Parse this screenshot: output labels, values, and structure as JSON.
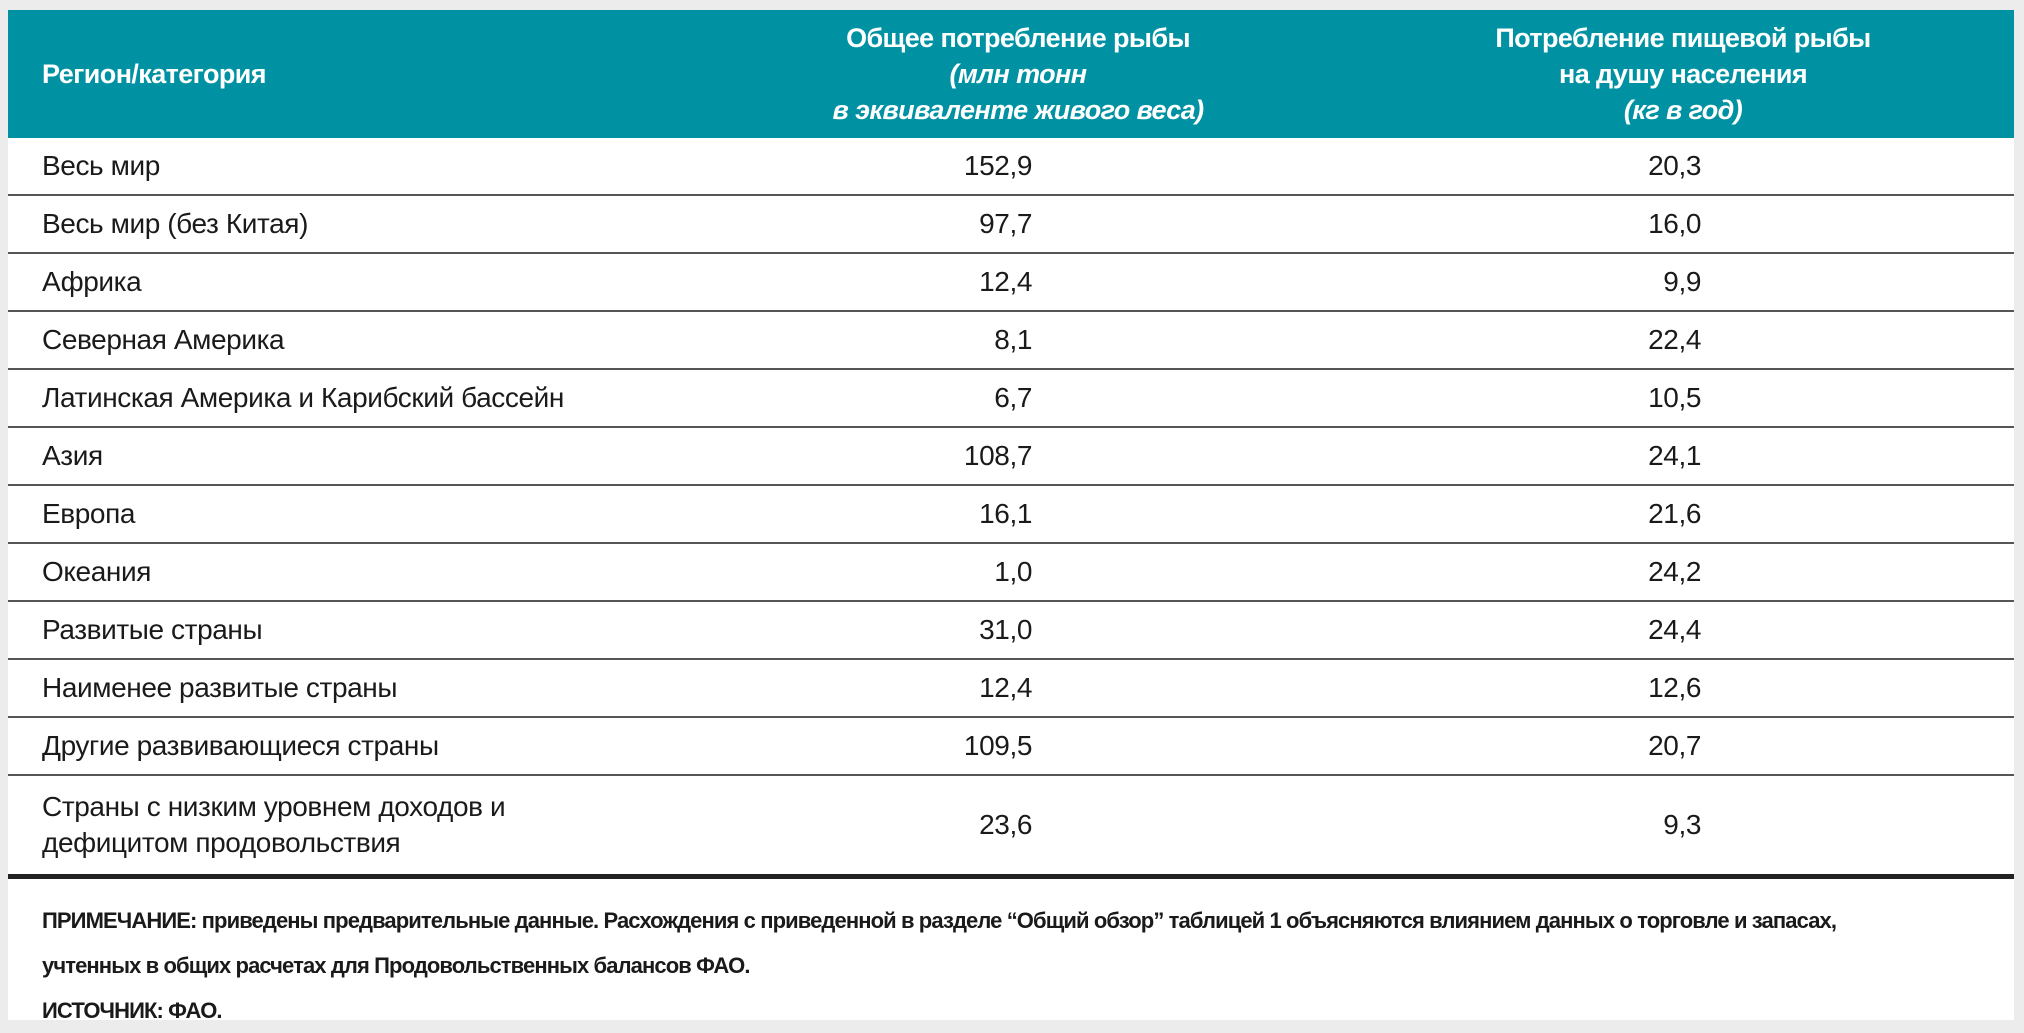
{
  "header": {
    "col1": "Регион/категория",
    "col2_line1": "Общее потребление рыбы",
    "col2_line2": "(млн тонн",
    "col2_line3": "в эквиваленте живого веса)",
    "col3_line1": "Потребление пищевой рыбы",
    "col3_line2": "на душу населения",
    "col3_line3": "(кг в год)"
  },
  "rows": [
    {
      "region": "Весь мир",
      "total": "152,9",
      "per_capita": "20,3"
    },
    {
      "region": "Весь мир (без Китая)",
      "total": "97,7",
      "per_capita": "16,0"
    },
    {
      "region": "Африка",
      "total": "12,4",
      "per_capita": "9,9"
    },
    {
      "region": "Северная Америка",
      "total": "8,1",
      "per_capita": "22,4"
    },
    {
      "region": "Латинская Америка и Карибский бассейн",
      "total": "6,7",
      "per_capita": "10,5"
    },
    {
      "region": "Азия",
      "total": "108,7",
      "per_capita": "24,1"
    },
    {
      "region": "Европа",
      "total": "16,1",
      "per_capita": "21,6"
    },
    {
      "region": "Океания",
      "total": "1,0",
      "per_capita": "24,2"
    },
    {
      "region": "Развитые страны",
      "total": "31,0",
      "per_capita": "24,4"
    },
    {
      "region": "Наименее развитые страны",
      "total": "12,4",
      "per_capita": "12,6"
    },
    {
      "region": "Другие развивающиеся страны",
      "total": "109,5",
      "per_capita": "20,7"
    },
    {
      "region_line1": "Страны с низким уровнем доходов и",
      "region_line2": "дефицитом продовольствия",
      "total": "23,6",
      "per_capita": "9,3"
    }
  ],
  "notes": {
    "note_line1": "ПРИМЕЧАНИЕ: приведены предварительные данные. Расхождения с приведенной в разделе “Общий обзор” таблицей 1 объясняются влиянием данных о торговле и запасах,",
    "note_line2": "учтенных в общих расчетах для Продовольственных балансов ФАО.",
    "source": "ИСТОЧНИК: ФАО."
  },
  "colors": {
    "header_bg": "#0092a3",
    "header_text": "#ffffff"
  }
}
